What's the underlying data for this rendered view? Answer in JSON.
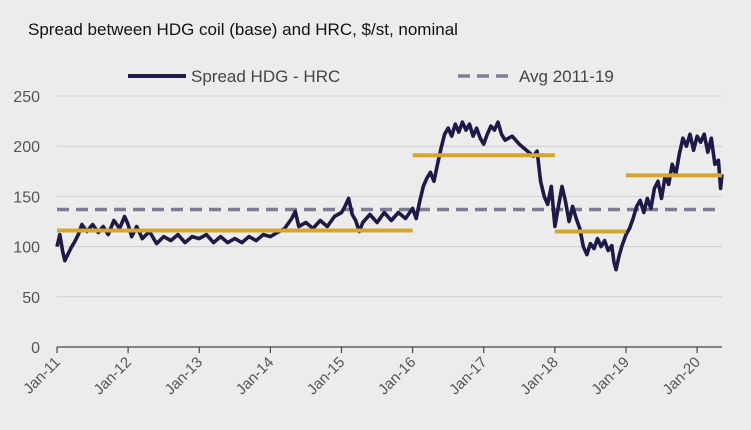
{
  "chart_data": {
    "type": "line",
    "title": "Spread between HDG coil (base) and HRC, $/st, nominal",
    "xlabel": "",
    "ylabel": "",
    "ylim": [
      0,
      250
    ],
    "yticks": [
      "0",
      "50",
      "100",
      "150",
      "200",
      "250"
    ],
    "xticks": [
      "Jan-11",
      "Jan-12",
      "Jan-13",
      "Jan-14",
      "Jan-15",
      "Jan-16",
      "Jan-17",
      "Jan-18",
      "Jan-19",
      "Jan-20"
    ],
    "xlim": [
      2011.0,
      2020.35
    ],
    "legend": [
      {
        "name": "Spread HDG - HRC",
        "style": "solid",
        "color": "#1d1a46"
      },
      {
        "name": "Avg 2011-19",
        "style": "dashed",
        "color": "#7e7c95"
      }
    ],
    "series": [
      {
        "name": "Spread HDG - HRC",
        "color": "#1d1a46",
        "points": [
          [
            2011.0,
            100
          ],
          [
            2011.04,
            112
          ],
          [
            2011.08,
            95
          ],
          [
            2011.11,
            86
          ],
          [
            2011.15,
            92
          ],
          [
            2011.2,
            99
          ],
          [
            2011.25,
            105
          ],
          [
            2011.3,
            112
          ],
          [
            2011.35,
            122
          ],
          [
            2011.42,
            115
          ],
          [
            2011.5,
            122
          ],
          [
            2011.58,
            114
          ],
          [
            2011.65,
            120
          ],
          [
            2011.72,
            112
          ],
          [
            2011.8,
            126
          ],
          [
            2011.88,
            118
          ],
          [
            2011.95,
            130
          ],
          [
            2012.0,
            122
          ],
          [
            2012.05,
            110
          ],
          [
            2012.12,
            120
          ],
          [
            2012.2,
            108
          ],
          [
            2012.3,
            115
          ],
          [
            2012.4,
            103
          ],
          [
            2012.5,
            110
          ],
          [
            2012.6,
            106
          ],
          [
            2012.7,
            112
          ],
          [
            2012.8,
            104
          ],
          [
            2012.9,
            110
          ],
          [
            2013.0,
            108
          ],
          [
            2013.1,
            112
          ],
          [
            2013.2,
            104
          ],
          [
            2013.3,
            110
          ],
          [
            2013.4,
            104
          ],
          [
            2013.5,
            108
          ],
          [
            2013.6,
            104
          ],
          [
            2013.7,
            110
          ],
          [
            2013.8,
            106
          ],
          [
            2013.9,
            112
          ],
          [
            2014.0,
            110
          ],
          [
            2014.1,
            114
          ],
          [
            2014.2,
            118
          ],
          [
            2014.3,
            128
          ],
          [
            2014.35,
            135
          ],
          [
            2014.4,
            120
          ],
          [
            2014.5,
            124
          ],
          [
            2014.6,
            118
          ],
          [
            2014.7,
            126
          ],
          [
            2014.8,
            120
          ],
          [
            2014.9,
            130
          ],
          [
            2015.0,
            134
          ],
          [
            2015.05,
            140
          ],
          [
            2015.1,
            148
          ],
          [
            2015.15,
            132
          ],
          [
            2015.2,
            126
          ],
          [
            2015.25,
            115
          ],
          [
            2015.3,
            124
          ],
          [
            2015.4,
            132
          ],
          [
            2015.5,
            124
          ],
          [
            2015.6,
            134
          ],
          [
            2015.7,
            126
          ],
          [
            2015.8,
            134
          ],
          [
            2015.9,
            128
          ],
          [
            2016.0,
            138
          ],
          [
            2016.05,
            128
          ],
          [
            2016.1,
            145
          ],
          [
            2016.15,
            160
          ],
          [
            2016.2,
            168
          ],
          [
            2016.25,
            174
          ],
          [
            2016.3,
            165
          ],
          [
            2016.35,
            182
          ],
          [
            2016.4,
            198
          ],
          [
            2016.45,
            212
          ],
          [
            2016.5,
            218
          ],
          [
            2016.55,
            210
          ],
          [
            2016.6,
            222
          ],
          [
            2016.65,
            214
          ],
          [
            2016.7,
            224
          ],
          [
            2016.75,
            216
          ],
          [
            2016.8,
            222
          ],
          [
            2016.85,
            210
          ],
          [
            2016.9,
            218
          ],
          [
            2016.95,
            208
          ],
          [
            2017.0,
            202
          ],
          [
            2017.05,
            212
          ],
          [
            2017.1,
            220
          ],
          [
            2017.15,
            216
          ],
          [
            2017.2,
            224
          ],
          [
            2017.25,
            212
          ],
          [
            2017.3,
            206
          ],
          [
            2017.4,
            210
          ],
          [
            2017.5,
            202
          ],
          [
            2017.6,
            196
          ],
          [
            2017.7,
            190
          ],
          [
            2017.75,
            195
          ],
          [
            2017.8,
            165
          ],
          [
            2017.85,
            150
          ],
          [
            2017.9,
            142
          ],
          [
            2017.95,
            160
          ],
          [
            2018.0,
            120
          ],
          [
            2018.05,
            140
          ],
          [
            2018.1,
            160
          ],
          [
            2018.15,
            145
          ],
          [
            2018.2,
            125
          ],
          [
            2018.25,
            140
          ],
          [
            2018.3,
            128
          ],
          [
            2018.35,
            118
          ],
          [
            2018.4,
            100
          ],
          [
            2018.45,
            92
          ],
          [
            2018.5,
            103
          ],
          [
            2018.55,
            98
          ],
          [
            2018.6,
            108
          ],
          [
            2018.65,
            100
          ],
          [
            2018.7,
            106
          ],
          [
            2018.75,
            96
          ],
          [
            2018.8,
            101
          ],
          [
            2018.83,
            85
          ],
          [
            2018.86,
            77
          ],
          [
            2018.9,
            90
          ],
          [
            2018.94,
            100
          ],
          [
            2019.0,
            112
          ],
          [
            2019.05,
            118
          ],
          [
            2019.1,
            128
          ],
          [
            2019.15,
            140
          ],
          [
            2019.2,
            146
          ],
          [
            2019.25,
            134
          ],
          [
            2019.3,
            148
          ],
          [
            2019.35,
            138
          ],
          [
            2019.4,
            158
          ],
          [
            2019.45,
            165
          ],
          [
            2019.5,
            148
          ],
          [
            2019.55,
            170
          ],
          [
            2019.6,
            162
          ],
          [
            2019.65,
            182
          ],
          [
            2019.7,
            172
          ],
          [
            2019.75,
            192
          ],
          [
            2019.8,
            208
          ],
          [
            2019.85,
            200
          ],
          [
            2019.9,
            212
          ],
          [
            2019.95,
            196
          ],
          [
            2020.0,
            210
          ],
          [
            2020.05,
            204
          ],
          [
            2020.1,
            212
          ],
          [
            2020.15,
            194
          ],
          [
            2020.2,
            208
          ],
          [
            2020.25,
            182
          ],
          [
            2020.3,
            186
          ],
          [
            2020.33,
            158
          ],
          [
            2020.35,
            172
          ]
        ]
      }
    ],
    "reference_lines": [
      {
        "name": "Avg 2011-19",
        "value": 137,
        "x_range": [
          2011.0,
          2020.35
        ],
        "style": "dashed",
        "color": "#7e7c95"
      }
    ],
    "period_averages": [
      {
        "x_range": [
          2011.0,
          2016.0
        ],
        "value": 116,
        "color": "#d4a62a"
      },
      {
        "x_range": [
          2016.0,
          2018.0
        ],
        "value": 191,
        "color": "#d4a62a"
      },
      {
        "x_range": [
          2018.0,
          2019.0
        ],
        "value": 115,
        "color": "#d4a62a"
      },
      {
        "x_range": [
          2019.0,
          2020.35
        ],
        "value": 171,
        "color": "#d4a62a"
      }
    ]
  }
}
